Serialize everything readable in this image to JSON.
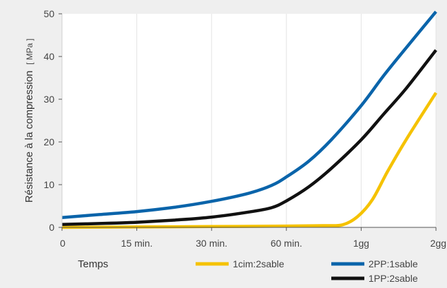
{
  "chart_data": {
    "type": "line",
    "xlabel": "Temps",
    "ylabel": "Résistance à la compression",
    "ylabel_unit": "[ MPa ]",
    "categories": [
      "0",
      "15 min.",
      "30 min.",
      "60 min.",
      "1gg",
      "2gg"
    ],
    "ylim": [
      0,
      50
    ],
    "yticks": [
      0,
      10,
      20,
      30,
      40,
      50
    ],
    "grid": "vertical",
    "legend_position": "bottom-right",
    "series": [
      {
        "name": "1cim:2sable",
        "color": "#f5c200",
        "x": [
          0,
          1,
          2,
          3,
          3.5,
          3.75,
          3.95,
          4.15,
          4.35,
          4.6,
          5
        ],
        "y": [
          0,
          0.1,
          0.2,
          0.3,
          0.4,
          0.6,
          2.5,
          6.5,
          13,
          20.5,
          31.5
        ]
      },
      {
        "name": "2PP:1sable",
        "color": "#0a64aa",
        "x": [
          0,
          0.5,
          1,
          1.5,
          2,
          2.5,
          2.8,
          3,
          3.3,
          3.6,
          4,
          4.3,
          4.6,
          5
        ],
        "y": [
          2.3,
          3,
          3.7,
          4.7,
          6.1,
          8,
          9.8,
          11.8,
          15.5,
          20.5,
          28.5,
          35.5,
          42,
          50.5
        ]
      },
      {
        "name": "1PP:2sable",
        "color": "#111111",
        "x": [
          0,
          0.5,
          1,
          1.5,
          2,
          2.5,
          2.8,
          3,
          3.3,
          3.6,
          4,
          4.3,
          4.6,
          5
        ],
        "y": [
          0.7,
          0.9,
          1.2,
          1.7,
          2.4,
          3.6,
          4.6,
          6.2,
          9.5,
          13.8,
          20.5,
          26.5,
          32.5,
          41.5
        ]
      }
    ]
  }
}
